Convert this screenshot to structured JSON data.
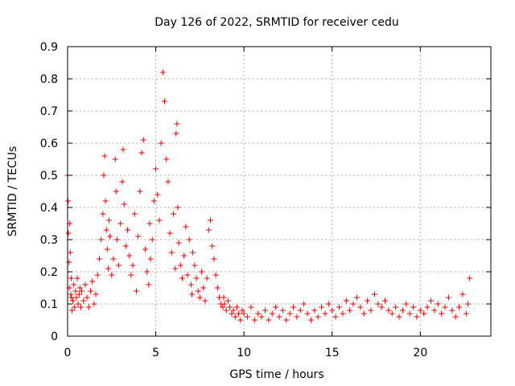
{
  "chart_data": {
    "type": "scatter",
    "title": "Day 126 of 2022, SRMTID for receiver cedu",
    "xlabel": "GPS time / hours",
    "ylabel": "SRMTID / TECUs",
    "xlim": [
      0,
      24
    ],
    "ylim": [
      0,
      0.9
    ],
    "xticks": [
      0,
      5,
      10,
      15,
      20
    ],
    "xtick_labels": [
      "0",
      "5",
      "10",
      "15",
      "20"
    ],
    "yticks": [
      0,
      0.1,
      0.2,
      0.3,
      0.4,
      0.5,
      0.6,
      0.7,
      0.8,
      0.9
    ],
    "ytick_labels": [
      "0",
      "0.1",
      "0.2",
      "0.3",
      "0.4",
      "0.5",
      "0.6",
      "0.7",
      "0.8",
      "0.9"
    ],
    "grid": true,
    "marker": "+",
    "color": "#ee0000",
    "series": [
      {
        "name": "SRMTID",
        "x": [
          0.0,
          0.03,
          0.05,
          0.08,
          0.1,
          0.12,
          0.15,
          0.18,
          0.2,
          0.22,
          0.25,
          0.3,
          0.35,
          0.4,
          0.45,
          0.5,
          0.55,
          0.6,
          0.65,
          0.7,
          0.75,
          0.8,
          0.9,
          1.0,
          1.1,
          1.2,
          1.3,
          1.4,
          1.5,
          1.6,
          1.7,
          1.8,
          1.9,
          2.0,
          2.05,
          2.1,
          2.15,
          2.2,
          2.25,
          2.3,
          2.35,
          2.4,
          2.5,
          2.6,
          2.7,
          2.75,
          2.8,
          2.9,
          3.0,
          3.1,
          3.15,
          3.2,
          3.3,
          3.4,
          3.5,
          3.6,
          3.7,
          3.8,
          3.9,
          4.0,
          4.1,
          4.2,
          4.3,
          4.4,
          4.5,
          4.6,
          4.65,
          4.7,
          4.8,
          4.9,
          5.0,
          5.1,
          5.2,
          5.3,
          5.4,
          5.5,
          5.6,
          5.7,
          5.8,
          5.9,
          6.0,
          6.1,
          6.15,
          6.2,
          6.25,
          6.3,
          6.4,
          6.5,
          6.6,
          6.7,
          6.8,
          6.9,
          7.0,
          7.05,
          7.1,
          7.2,
          7.3,
          7.4,
          7.5,
          7.6,
          7.7,
          7.8,
          7.9,
          8.0,
          8.1,
          8.2,
          8.3,
          8.4,
          8.5,
          8.6,
          8.7,
          8.8,
          8.85,
          8.9,
          9.0,
          9.1,
          9.2,
          9.3,
          9.4,
          9.5,
          9.6,
          9.7,
          9.8,
          9.9,
          10.0,
          10.2,
          10.4,
          10.6,
          10.8,
          11.0,
          11.2,
          11.4,
          11.6,
          11.8,
          12.0,
          12.2,
          12.4,
          12.6,
          12.8,
          13.0,
          13.2,
          13.4,
          13.6,
          13.8,
          14.0,
          14.2,
          14.4,
          14.6,
          14.8,
          15.0,
          15.2,
          15.4,
          15.6,
          15.8,
          16.0,
          16.2,
          16.4,
          16.6,
          16.8,
          17.0,
          17.2,
          17.4,
          17.6,
          17.8,
          18.0,
          18.2,
          18.4,
          18.6,
          18.8,
          19.0,
          19.2,
          19.4,
          19.6,
          19.8,
          20.0,
          20.2,
          20.4,
          20.6,
          20.8,
          21.0,
          21.2,
          21.4,
          21.6,
          21.8,
          22.0,
          22.2,
          22.4,
          22.6,
          22.7,
          22.8
        ],
        "y": [
          0.5,
          0.42,
          0.32,
          0.23,
          0.15,
          0.35,
          0.26,
          0.13,
          0.18,
          0.12,
          0.08,
          0.11,
          0.16,
          0.09,
          0.14,
          0.12,
          0.18,
          0.1,
          0.13,
          0.15,
          0.09,
          0.14,
          0.11,
          0.16,
          0.12,
          0.09,
          0.14,
          0.17,
          0.1,
          0.13,
          0.19,
          0.24,
          0.3,
          0.38,
          0.5,
          0.56,
          0.42,
          0.33,
          0.27,
          0.21,
          0.36,
          0.31,
          0.19,
          0.24,
          0.55,
          0.45,
          0.3,
          0.22,
          0.35,
          0.48,
          0.58,
          0.41,
          0.28,
          0.33,
          0.25,
          0.19,
          0.22,
          0.38,
          0.14,
          0.31,
          0.45,
          0.57,
          0.61,
          0.27,
          0.2,
          0.16,
          0.35,
          0.24,
          0.3,
          0.42,
          0.52,
          0.44,
          0.36,
          0.6,
          0.82,
          0.73,
          0.55,
          0.48,
          0.32,
          0.26,
          0.38,
          0.21,
          0.63,
          0.66,
          0.4,
          0.29,
          0.22,
          0.18,
          0.25,
          0.34,
          0.19,
          0.3,
          0.16,
          0.13,
          0.26,
          0.22,
          0.18,
          0.14,
          0.12,
          0.2,
          0.15,
          0.11,
          0.18,
          0.33,
          0.36,
          0.28,
          0.24,
          0.19,
          0.15,
          0.12,
          0.1,
          0.09,
          0.12,
          0.1,
          0.08,
          0.11,
          0.09,
          0.07,
          0.08,
          0.06,
          0.09,
          0.07,
          0.05,
          0.08,
          0.07,
          0.06,
          0.09,
          0.05,
          0.07,
          0.06,
          0.08,
          0.05,
          0.07,
          0.09,
          0.06,
          0.08,
          0.05,
          0.07,
          0.09,
          0.06,
          0.08,
          0.1,
          0.07,
          0.05,
          0.08,
          0.06,
          0.09,
          0.07,
          0.1,
          0.08,
          0.06,
          0.09,
          0.07,
          0.11,
          0.08,
          0.1,
          0.12,
          0.09,
          0.07,
          0.11,
          0.08,
          0.13,
          0.1,
          0.09,
          0.11,
          0.08,
          0.07,
          0.09,
          0.06,
          0.08,
          0.1,
          0.07,
          0.09,
          0.06,
          0.08,
          0.07,
          0.09,
          0.11,
          0.08,
          0.1,
          0.07,
          0.09,
          0.12,
          0.08,
          0.06,
          0.09,
          0.13,
          0.07,
          0.1,
          0.18
        ]
      }
    ]
  }
}
